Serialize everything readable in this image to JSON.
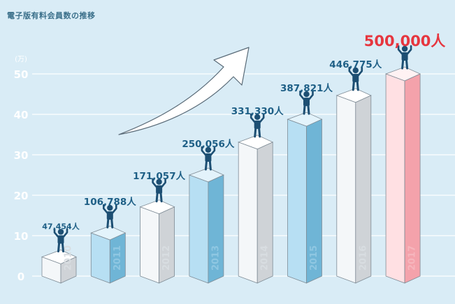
{
  "chart_data": {
    "type": "bar",
    "title": "電子版有料会員数の推移",
    "unit_label": "(万)",
    "ylim": [
      0,
      50
    ],
    "yticks": [
      0,
      10,
      20,
      30,
      40,
      50
    ],
    "grid": true,
    "categories": [
      "2010",
      "2011",
      "2012",
      "2013",
      "2014",
      "2015",
      "2016",
      "2017"
    ],
    "values": [
      47454,
      106788,
      171057,
      250056,
      331330,
      387821,
      446775,
      500000
    ],
    "value_labels": [
      "47,454人",
      "106,788人",
      "171,057人",
      "250,056人",
      "331,330人",
      "387,821人",
      "446,775人",
      "500,000人"
    ],
    "bar_styles": [
      "white",
      "blue",
      "white",
      "blue",
      "white",
      "blue",
      "white",
      "pink"
    ],
    "colors": {
      "background": "#d9ecf6",
      "grid": "#ffffff",
      "label": "#1e5f86",
      "highlight_label": "#e6363f",
      "figure": "#1d4f73",
      "arrow_fill": "#ffffff",
      "arrow_stroke": "#5a6b78"
    }
  }
}
